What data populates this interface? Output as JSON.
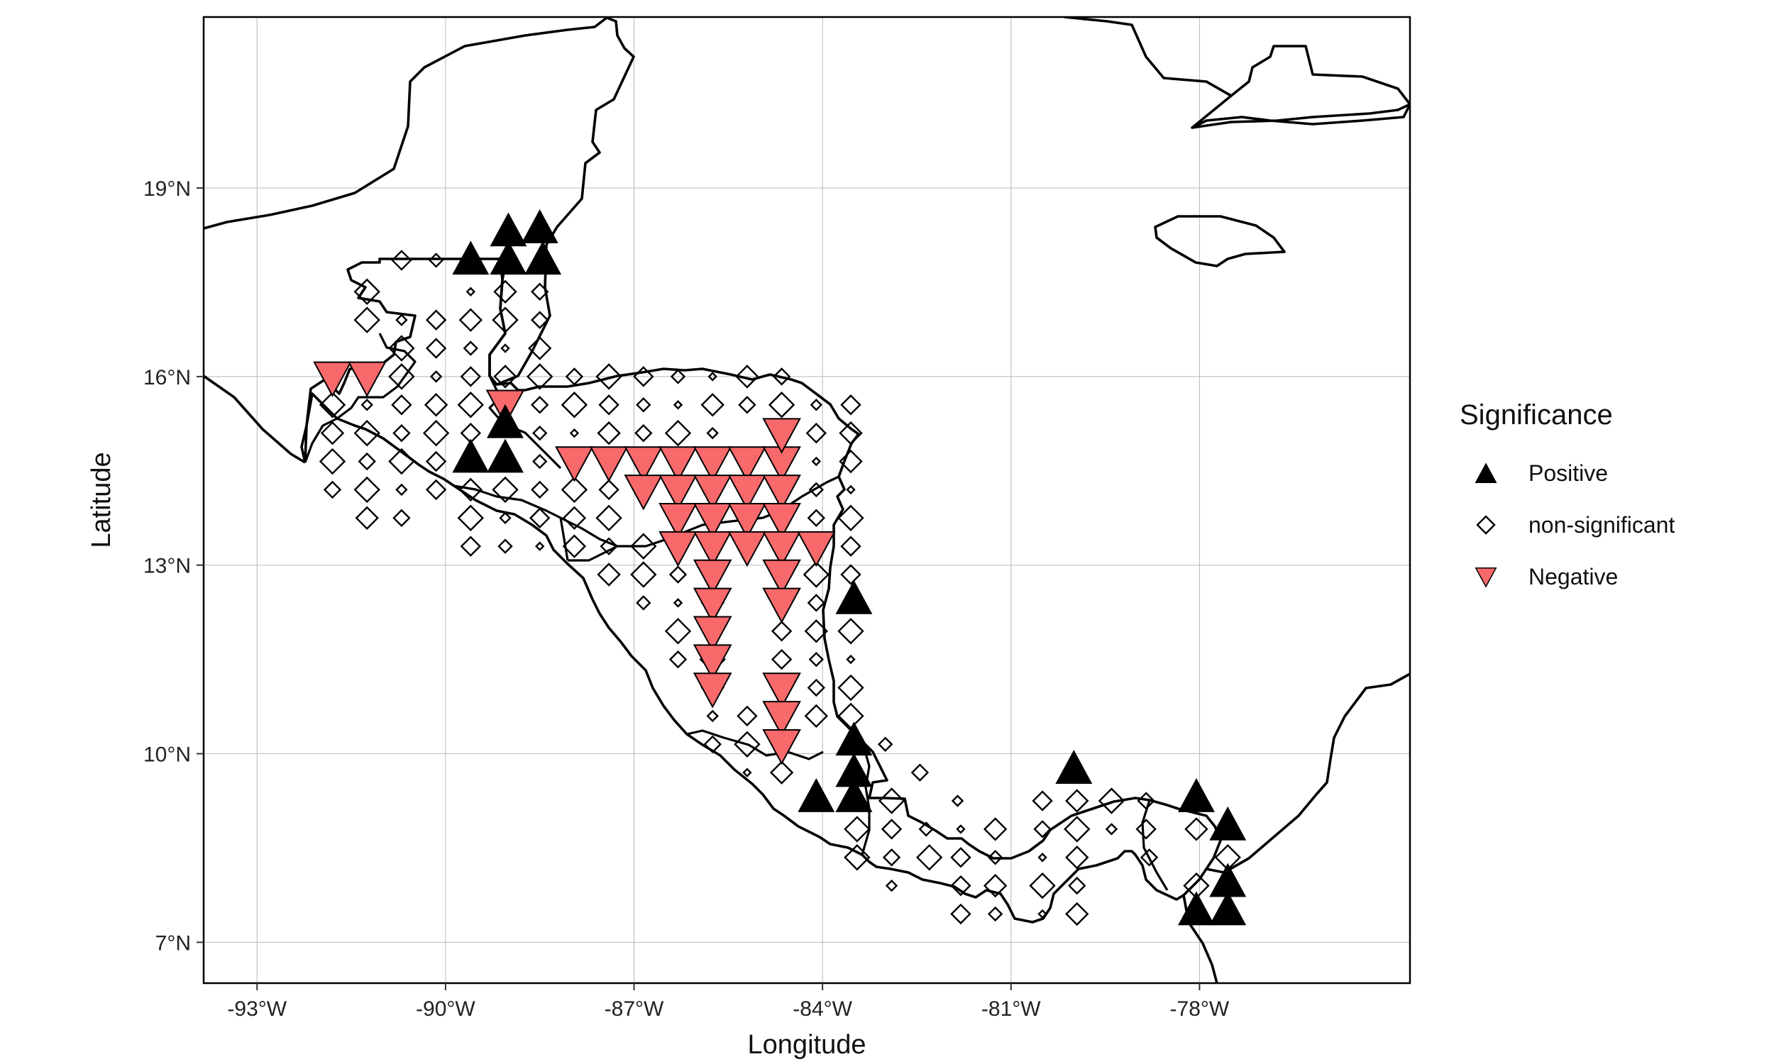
{
  "chart_data": {
    "type": "scatter",
    "xlabel": "Longitude",
    "ylabel": "Latitude",
    "xlim": [
      -93.85,
      -74.65
    ],
    "ylim": [
      6.35,
      21.72
    ],
    "x_ticks": [
      -93,
      -90,
      -87,
      -84,
      -81,
      -78
    ],
    "x_tick_labels": [
      "-93°W",
      "-90°W",
      "-87°W",
      "-84°W",
      "-81°W",
      "-78°W"
    ],
    "y_ticks": [
      7,
      10,
      13,
      16,
      19
    ],
    "y_tick_labels": [
      "7°N",
      "10°N",
      "13°N",
      "16°N",
      "19°N"
    ],
    "grid": true,
    "legend": {
      "title": "Significance",
      "placement": "right",
      "entries": [
        {
          "label": "Positive",
          "shape": "triangle-up",
          "color": "#000000"
        },
        {
          "label": "non-significant",
          "shape": "diamond-open",
          "color": "#000000"
        },
        {
          "label": "Negative",
          "shape": "triangle-down",
          "color": "#F8696B"
        }
      ]
    },
    "series": [
      {
        "name": "Positive",
        "points": [
          [
            -89.6,
            17.85
          ],
          [
            -89.0,
            18.3
          ],
          [
            -88.5,
            18.35
          ],
          [
            -89.0,
            17.85
          ],
          [
            -88.45,
            17.85
          ],
          [
            -89.6,
            14.7
          ],
          [
            -89.05,
            15.25
          ],
          [
            -89.05,
            14.7
          ],
          [
            -83.5,
            12.45
          ],
          [
            -83.5,
            10.2
          ],
          [
            -83.5,
            9.7
          ],
          [
            -83.5,
            9.3
          ],
          [
            -84.1,
            9.3
          ],
          [
            -80.0,
            9.75
          ],
          [
            -78.05,
            9.3
          ],
          [
            -77.55,
            8.85
          ],
          [
            -77.55,
            7.95
          ],
          [
            -78.05,
            7.5
          ],
          [
            -77.55,
            7.5
          ]
        ]
      },
      {
        "name": "non-significant",
        "points": [
          [
            -91.25,
            17.35
          ],
          [
            -90.7,
            17.85
          ],
          [
            -90.15,
            17.85
          ],
          [
            -89.6,
            17.35
          ],
          [
            -89.05,
            17.35
          ],
          [
            -88.5,
            17.35
          ],
          [
            -91.25,
            16.9
          ],
          [
            -90.7,
            16.9
          ],
          [
            -90.15,
            16.9
          ],
          [
            -89.6,
            16.9
          ],
          [
            -89.05,
            16.9
          ],
          [
            -88.5,
            16.9
          ],
          [
            -90.7,
            16.45
          ],
          [
            -90.15,
            16.45
          ],
          [
            -89.6,
            16.45
          ],
          [
            -89.05,
            16.45
          ],
          [
            -88.5,
            16.45
          ],
          [
            -91.25,
            16.0
          ],
          [
            -90.7,
            16.0
          ],
          [
            -90.15,
            16.0
          ],
          [
            -89.6,
            16.0
          ],
          [
            -89.05,
            16.0
          ],
          [
            -88.5,
            16.0
          ],
          [
            -87.95,
            16.0
          ],
          [
            -87.4,
            16.0
          ],
          [
            -86.85,
            16.0
          ],
          [
            -86.3,
            16.0
          ],
          [
            -85.75,
            16.0
          ],
          [
            -85.2,
            16.0
          ],
          [
            -84.65,
            16.0
          ],
          [
            -91.8,
            15.55
          ],
          [
            -91.25,
            15.55
          ],
          [
            -90.7,
            15.55
          ],
          [
            -90.15,
            15.55
          ],
          [
            -89.6,
            15.55
          ],
          [
            -88.5,
            15.55
          ],
          [
            -87.95,
            15.55
          ],
          [
            -87.4,
            15.55
          ],
          [
            -86.85,
            15.55
          ],
          [
            -86.3,
            15.55
          ],
          [
            -85.75,
            15.55
          ],
          [
            -85.2,
            15.55
          ],
          [
            -84.65,
            15.55
          ],
          [
            -84.1,
            15.55
          ],
          [
            -83.55,
            15.55
          ],
          [
            -91.8,
            15.1
          ],
          [
            -91.25,
            15.1
          ],
          [
            -90.7,
            15.1
          ],
          [
            -90.15,
            15.1
          ],
          [
            -89.6,
            15.1
          ],
          [
            -88.5,
            15.1
          ],
          [
            -87.95,
            15.1
          ],
          [
            -87.4,
            15.1
          ],
          [
            -86.85,
            15.1
          ],
          [
            -86.3,
            15.1
          ],
          [
            -85.75,
            15.1
          ],
          [
            -84.1,
            15.1
          ],
          [
            -83.55,
            15.1
          ],
          [
            -91.8,
            14.65
          ],
          [
            -91.25,
            14.65
          ],
          [
            -90.7,
            14.65
          ],
          [
            -90.15,
            14.65
          ],
          [
            -88.5,
            14.65
          ],
          [
            -84.1,
            14.65
          ],
          [
            -83.55,
            14.65
          ],
          [
            -91.8,
            14.2
          ],
          [
            -91.25,
            14.2
          ],
          [
            -90.7,
            14.2
          ],
          [
            -90.15,
            14.2
          ],
          [
            -89.6,
            14.2
          ],
          [
            -89.05,
            14.2
          ],
          [
            -88.5,
            14.2
          ],
          [
            -87.95,
            14.2
          ],
          [
            -87.4,
            14.2
          ],
          [
            -84.1,
            14.2
          ],
          [
            -83.55,
            14.2
          ],
          [
            -91.25,
            13.75
          ],
          [
            -90.7,
            13.75
          ],
          [
            -89.6,
            13.75
          ],
          [
            -89.05,
            13.75
          ],
          [
            -88.5,
            13.75
          ],
          [
            -87.95,
            13.75
          ],
          [
            -87.4,
            13.75
          ],
          [
            -84.1,
            13.75
          ],
          [
            -83.55,
            13.75
          ],
          [
            -89.6,
            13.3
          ],
          [
            -89.05,
            13.3
          ],
          [
            -88.5,
            13.3
          ],
          [
            -87.95,
            13.3
          ],
          [
            -87.4,
            13.3
          ],
          [
            -86.85,
            13.3
          ],
          [
            -86.3,
            13.3
          ],
          [
            -83.55,
            13.3
          ],
          [
            -87.4,
            12.85
          ],
          [
            -86.85,
            12.85
          ],
          [
            -86.3,
            12.85
          ],
          [
            -84.1,
            12.85
          ],
          [
            -83.55,
            12.85
          ],
          [
            -86.85,
            12.4
          ],
          [
            -86.3,
            12.4
          ],
          [
            -85.75,
            12.4
          ],
          [
            -84.1,
            12.4
          ],
          [
            -86.3,
            11.95
          ],
          [
            -85.75,
            11.95
          ],
          [
            -84.65,
            11.95
          ],
          [
            -84.1,
            11.95
          ],
          [
            -83.55,
            11.95
          ],
          [
            -86.3,
            11.5
          ],
          [
            -85.75,
            11.5
          ],
          [
            -84.65,
            11.5
          ],
          [
            -84.1,
            11.5
          ],
          [
            -83.55,
            11.5
          ],
          [
            -85.75,
            11.05
          ],
          [
            -84.1,
            11.05
          ],
          [
            -83.55,
            11.05
          ],
          [
            -85.75,
            10.6
          ],
          [
            -85.2,
            10.6
          ],
          [
            -84.1,
            10.6
          ],
          [
            -83.55,
            10.6
          ],
          [
            -85.75,
            10.15
          ],
          [
            -85.2,
            10.15
          ],
          [
            -84.65,
            10.15
          ],
          [
            -83.0,
            10.15
          ],
          [
            -85.2,
            9.7
          ],
          [
            -84.65,
            9.7
          ],
          [
            -82.45,
            9.7
          ],
          [
            -82.9,
            9.25
          ],
          [
            -81.85,
            9.25
          ],
          [
            -80.5,
            9.25
          ],
          [
            -79.95,
            9.25
          ],
          [
            -79.4,
            9.25
          ],
          [
            -78.85,
            9.25
          ],
          [
            -83.45,
            8.8
          ],
          [
            -82.9,
            8.8
          ],
          [
            -82.35,
            8.8
          ],
          [
            -81.8,
            8.8
          ],
          [
            -81.25,
            8.8
          ],
          [
            -80.5,
            8.8
          ],
          [
            -79.95,
            8.8
          ],
          [
            -79.4,
            8.8
          ],
          [
            -78.85,
            8.8
          ],
          [
            -78.05,
            8.8
          ],
          [
            -83.45,
            8.35
          ],
          [
            -82.9,
            8.35
          ],
          [
            -82.3,
            8.35
          ],
          [
            -81.8,
            8.35
          ],
          [
            -81.25,
            8.35
          ],
          [
            -80.5,
            8.35
          ],
          [
            -79.95,
            8.35
          ],
          [
            -78.8,
            8.35
          ],
          [
            -77.55,
            8.35
          ],
          [
            -82.9,
            7.9
          ],
          [
            -81.8,
            7.9
          ],
          [
            -81.25,
            7.9
          ],
          [
            -80.5,
            7.9
          ],
          [
            -79.95,
            7.9
          ],
          [
            -78.05,
            7.9
          ],
          [
            -81.8,
            7.45
          ],
          [
            -81.25,
            7.45
          ],
          [
            -80.5,
            7.45
          ],
          [
            -79.95,
            7.45
          ]
        ]
      },
      {
        "name": "Negative",
        "points": [
          [
            -91.8,
            16.0
          ],
          [
            -91.25,
            16.0
          ],
          [
            -89.05,
            15.55
          ],
          [
            -87.95,
            14.65
          ],
          [
            -87.4,
            14.65
          ],
          [
            -86.85,
            14.65
          ],
          [
            -86.3,
            14.65
          ],
          [
            -85.75,
            14.65
          ],
          [
            -85.2,
            14.65
          ],
          [
            -84.65,
            14.65
          ],
          [
            -84.65,
            15.1
          ],
          [
            -86.85,
            14.2
          ],
          [
            -86.3,
            14.2
          ],
          [
            -85.75,
            14.2
          ],
          [
            -85.2,
            14.2
          ],
          [
            -84.65,
            14.2
          ],
          [
            -86.3,
            13.75
          ],
          [
            -85.75,
            13.75
          ],
          [
            -85.2,
            13.75
          ],
          [
            -84.65,
            13.75
          ],
          [
            -86.3,
            13.3
          ],
          [
            -85.75,
            13.3
          ],
          [
            -85.2,
            13.3
          ],
          [
            -84.65,
            13.3
          ],
          [
            -84.1,
            13.3
          ],
          [
            -85.75,
            12.85
          ],
          [
            -84.65,
            12.85
          ],
          [
            -85.75,
            12.4
          ],
          [
            -84.65,
            12.4
          ],
          [
            -85.75,
            11.95
          ],
          [
            -85.75,
            11.5
          ],
          [
            -85.75,
            11.05
          ],
          [
            -84.65,
            11.05
          ],
          [
            -84.65,
            10.6
          ],
          [
            -84.65,
            10.15
          ]
        ]
      }
    ]
  },
  "map_features": [
    "coastline",
    "country-borders"
  ]
}
